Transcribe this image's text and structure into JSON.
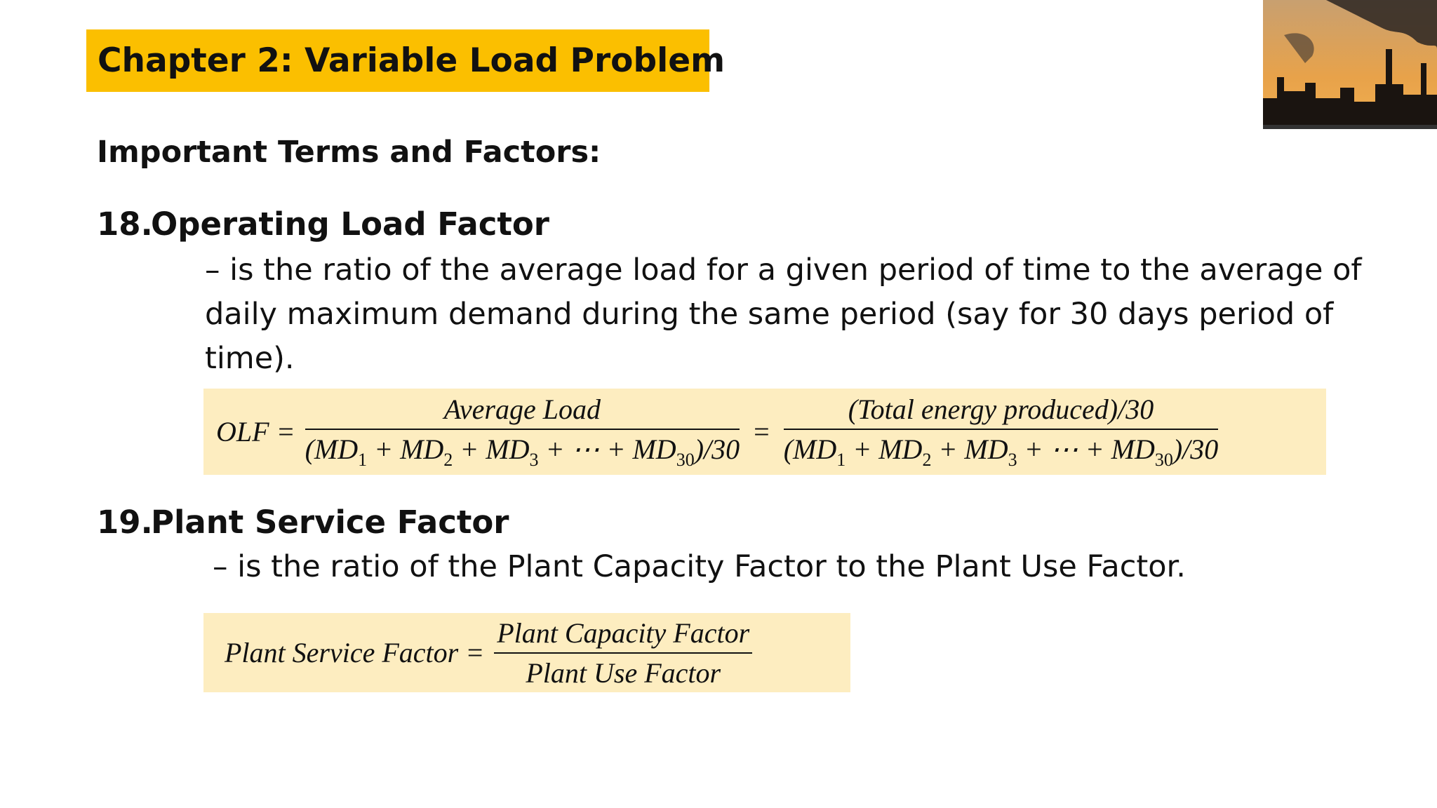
{
  "header": {
    "title": "Chapter 2: Variable Load Problem"
  },
  "section_title": "Important Terms and Factors:",
  "items": [
    {
      "number": "18.",
      "term": "Operating Load Factor",
      "definition": "– is the ratio of the average load for a given period of time to the average of daily maximum demand during the same period (say for 30 days period of time).",
      "formula": {
        "lhs": "OLF =",
        "fractions": [
          {
            "numerator": "Average Load",
            "denominator_parts": [
              "(MD",
              "1",
              " + MD",
              "2",
              " + MD",
              "3",
              " + ⋯ + MD",
              "30",
              ")/30"
            ]
          },
          {
            "numerator": "(Total energy produced)/30",
            "denominator_parts": [
              "(MD",
              "1",
              " + MD",
              "2",
              " + MD",
              "3",
              " + ⋯ + MD",
              "30",
              ")/30"
            ]
          }
        ],
        "separator": "="
      }
    },
    {
      "number": "19.",
      "term": "Plant Service Factor",
      "definition": "– is the ratio of the Plant Capacity Factor to the Plant Use Factor.",
      "formula": {
        "lhs": "Plant Service Factor =",
        "fractions": [
          {
            "numerator": "Plant Capacity Factor",
            "denominator_parts": [
              "Plant Use Factor"
            ]
          }
        ]
      }
    }
  ]
}
